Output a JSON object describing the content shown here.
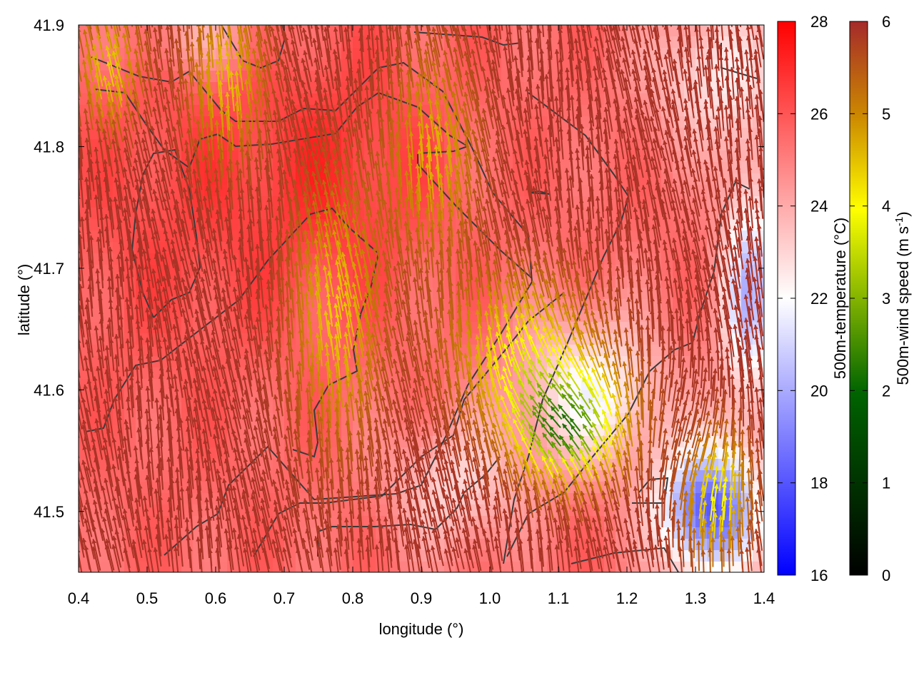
{
  "chart_data": {
    "type": "heatmap",
    "title": "",
    "xlabel": "longitude (°)",
    "ylabel": "latitude (°)",
    "xlim": [
      0.4,
      1.4
    ],
    "ylim": [
      41.45,
      41.9
    ],
    "x_ticks": [
      0.4,
      0.5,
      0.6,
      0.7,
      0.8,
      0.9,
      1.0,
      1.1,
      1.2,
      1.3,
      1.4
    ],
    "x_tick_labels": [
      "0.4",
      "0.5",
      "0.6",
      "0.7",
      "0.8",
      "0.9",
      "1.0",
      "1.1",
      "1.2",
      "1.3",
      "1.4"
    ],
    "y_ticks": [
      41.5,
      41.6,
      41.7,
      41.8,
      41.9
    ],
    "y_tick_labels": [
      "41.5",
      "41.6",
      "41.7",
      "41.8",
      "41.9"
    ],
    "temperature_colorbar": {
      "label": "500m-temperature (°C)",
      "range": [
        16,
        28
      ],
      "ticks": [
        16,
        18,
        20,
        22,
        24,
        26,
        28
      ],
      "tick_labels": [
        "16",
        "18",
        "20",
        "22",
        "24",
        "26",
        "28"
      ],
      "colors": [
        "#0000ff",
        "#ffffff",
        "#ff0000"
      ]
    },
    "wind_colorbar": {
      "label_main": "500m-wind speed (m s",
      "label_sup": "-1",
      "label_end": ")",
      "range": [
        0,
        6
      ],
      "ticks": [
        0,
        1,
        2,
        3,
        4,
        5,
        6
      ],
      "tick_labels": [
        "0",
        "1",
        "2",
        "3",
        "4",
        "5",
        "6"
      ],
      "colors": [
        "#000000",
        "#006400",
        "#ffff00",
        "#cc8800",
        "#a52a2a"
      ]
    },
    "contour_color": "#3a3a3a",
    "temperature_field_notes": "warm (~26-27 °C) west and north, cool (~17-19 °C) in the south-east corner",
    "wind_field_notes": "winds mostly from the south (~5-6 m/s), weaker (~2-4 m/s) near 1.05-1.2° lon, 41.5-41.6° lat"
  }
}
